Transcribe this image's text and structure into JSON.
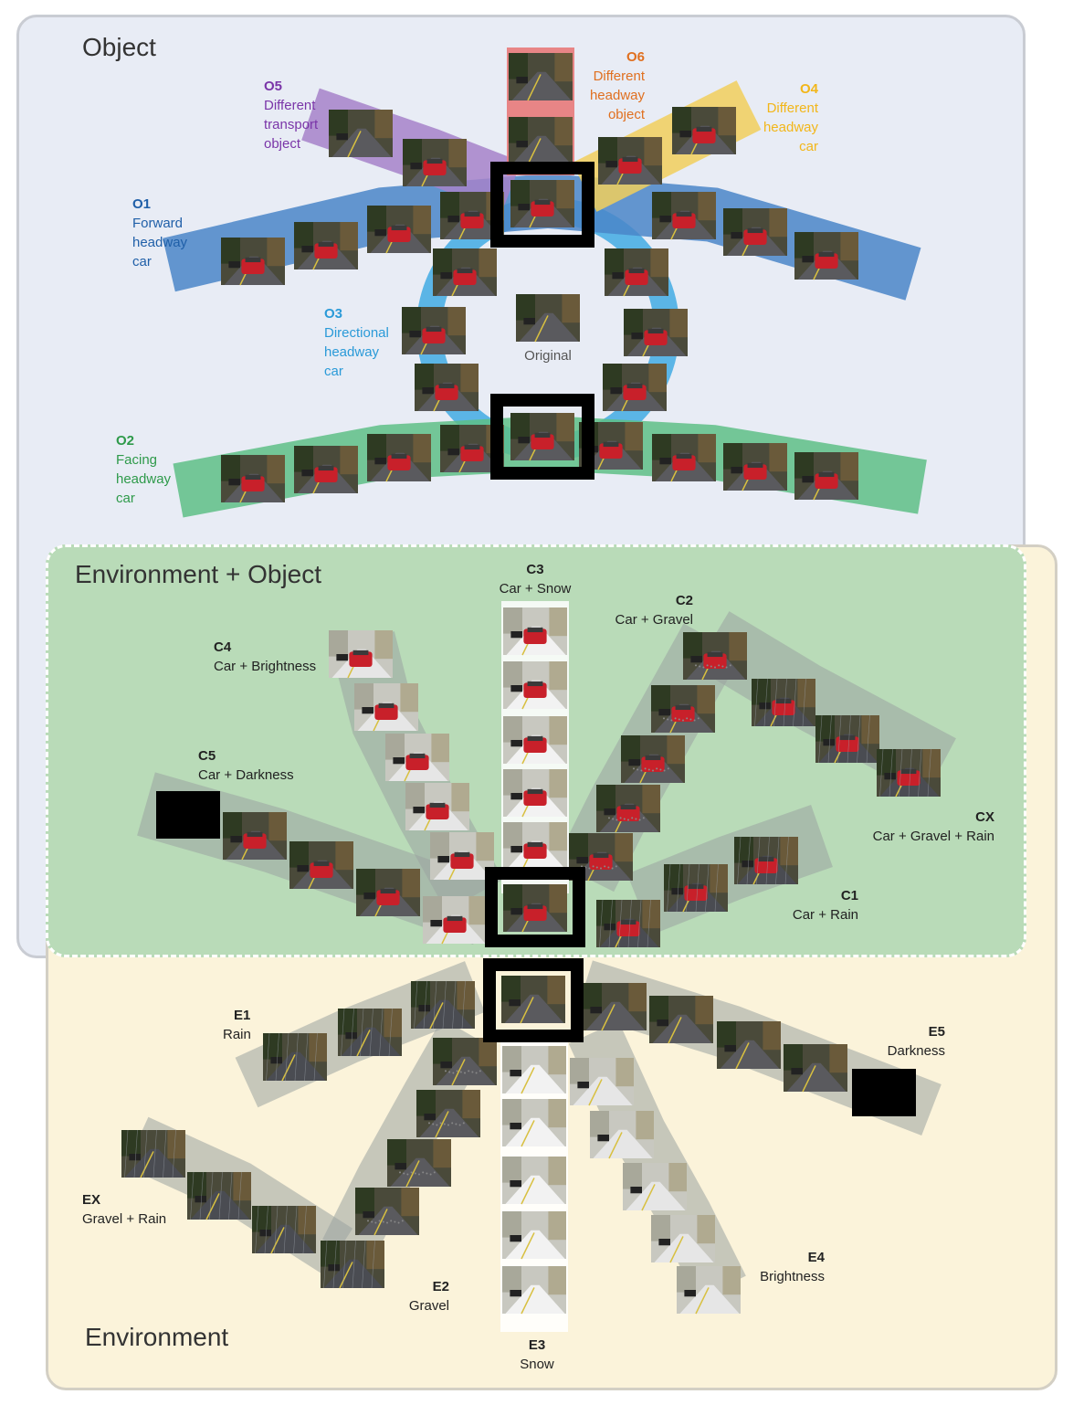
{
  "regions": {
    "object": {
      "title": "Object"
    },
    "env_obj": {
      "title": "Environment + Object"
    },
    "environment": {
      "title": "Environment"
    }
  },
  "labels": {
    "o1": {
      "code": "O1",
      "lines": [
        "Forward",
        "headway",
        "car"
      ],
      "color": "#1f5fa8"
    },
    "o2": {
      "code": "O2",
      "lines": [
        "Facing",
        "headway",
        "car"
      ],
      "color": "#2e9a4a"
    },
    "o3": {
      "code": "O3",
      "lines": [
        "Directional",
        "headway",
        "car"
      ],
      "color": "#2a9ad8"
    },
    "o4": {
      "code": "O4",
      "lines": [
        "Different",
        "headway",
        "car"
      ],
      "color": "#f2b619"
    },
    "o5": {
      "code": "O5",
      "lines": [
        "Different",
        "transport",
        "object"
      ],
      "color": "#7a35a8"
    },
    "o6": {
      "code": "O6",
      "lines": [
        "Different",
        "headway",
        "object"
      ],
      "color": "#e07020"
    },
    "original": {
      "text": "Original"
    },
    "c1": {
      "code": "C1",
      "text": "Car + Rain"
    },
    "c2": {
      "code": "C2",
      "text": "Car + Gravel"
    },
    "c3": {
      "code": "C3",
      "text": "Car + Snow"
    },
    "c4": {
      "code": "C4",
      "text": "Car + Brightness"
    },
    "c5": {
      "code": "C5",
      "text": "Car + Darkness"
    },
    "cx": {
      "code": "CX",
      "text": "Car + Gravel + Rain"
    },
    "e1": {
      "code": "E1",
      "text": "Rain"
    },
    "e2": {
      "code": "E2",
      "text": "Gravel"
    },
    "e3": {
      "code": "E3",
      "text": "Snow"
    },
    "e4": {
      "code": "E4",
      "text": "Brightness"
    },
    "e5": {
      "code": "E5",
      "text": "Darkness"
    },
    "ex": {
      "code": "EX",
      "text": "Gravel + Rain"
    }
  },
  "colors": {
    "forward_band": "#4a86c8",
    "facing_band": "#5ebf86",
    "ring": "#5bb5e6",
    "different_car_band": "#f1cf5c",
    "transport_band": "#a683c9",
    "headway_object_band": "#e87a7a",
    "arm_band": "#9aa2a0",
    "thumb_sky": "#4a4a3a",
    "thumb_road": "#5a5a5e",
    "thumb_car": "#c8202a",
    "snow": "#f2f2f2",
    "dark": "#000000"
  }
}
